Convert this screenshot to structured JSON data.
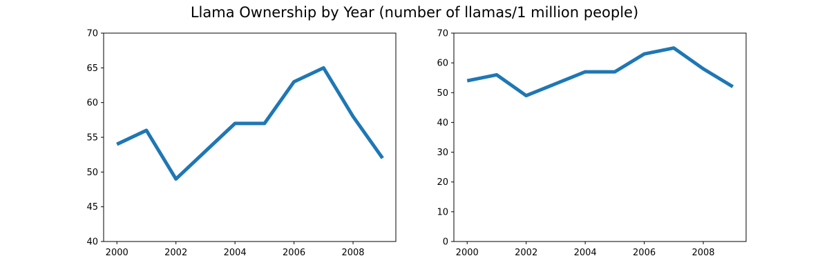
{
  "figure": {
    "title": "Llama Ownership by Year (number of llamas/1 million people)"
  },
  "colors": {
    "line": "#1f77b4",
    "axes": "#000000",
    "background": "#ffffff"
  },
  "chart_data": [
    {
      "type": "line",
      "title": "",
      "xlabel": "",
      "ylabel": "",
      "x": [
        2000,
        2001,
        2002,
        2003,
        2004,
        2005,
        2006,
        2007,
        2008,
        2009
      ],
      "series": [
        {
          "values": [
            54,
            56,
            49,
            53,
            57,
            57,
            63,
            65,
            58,
            52
          ]
        }
      ],
      "xlim": [
        1999.55,
        2009.45
      ],
      "ylim": [
        40,
        70
      ],
      "xticks": [
        2000,
        2002,
        2004,
        2006,
        2008
      ],
      "yticks": [
        40,
        45,
        50,
        55,
        60,
        65,
        70
      ],
      "grid": false
    },
    {
      "type": "line",
      "title": "",
      "xlabel": "",
      "ylabel": "",
      "x": [
        2000,
        2001,
        2002,
        2003,
        2004,
        2005,
        2006,
        2007,
        2008,
        2009
      ],
      "series": [
        {
          "values": [
            54,
            56,
            49,
            53,
            57,
            57,
            63,
            65,
            58,
            52
          ]
        }
      ],
      "xlim": [
        1999.55,
        2009.45
      ],
      "ylim": [
        0,
        70
      ],
      "xticks": [
        2000,
        2002,
        2004,
        2006,
        2008
      ],
      "yticks": [
        0,
        10,
        20,
        30,
        40,
        50,
        60,
        70
      ],
      "grid": false
    }
  ]
}
